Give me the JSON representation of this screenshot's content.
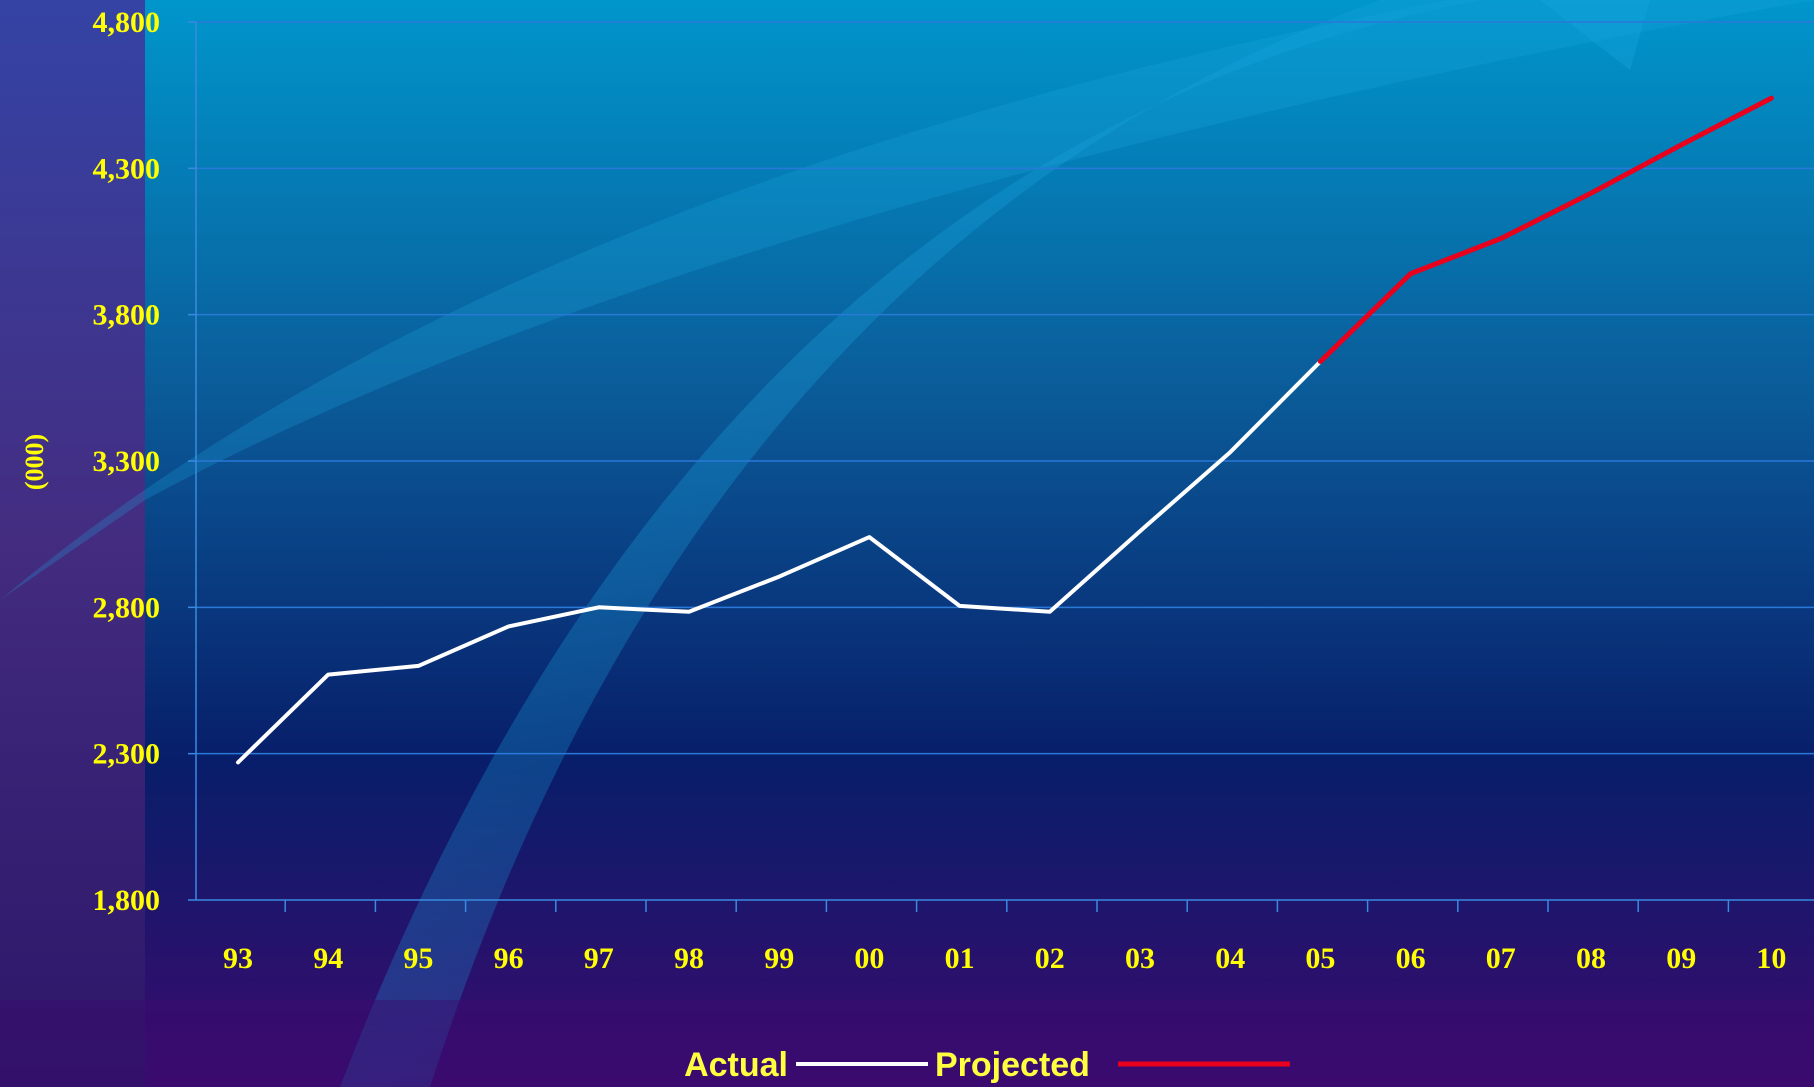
{
  "chart_data": {
    "type": "line",
    "ylabel": "(000)",
    "xlabel": "",
    "title": "",
    "categories": [
      "93",
      "94",
      "95",
      "96",
      "97",
      "98",
      "99",
      "00",
      "01",
      "02",
      "03",
      "04",
      "05",
      "06",
      "07",
      "08",
      "09",
      "10"
    ],
    "ylim": [
      1800,
      4800
    ],
    "yticks": [
      1800,
      2300,
      2800,
      3300,
      3800,
      4300,
      4800
    ],
    "ytick_labels": [
      "1,800",
      "2,300",
      "2,800",
      "3,300",
      "3,800",
      "4,300",
      "4,800"
    ],
    "grid": true,
    "legend": "bottom-center",
    "series": [
      {
        "name": "Actual",
        "color": "#ffffff",
        "values": [
          2270,
          2570,
          2600,
          2735,
          2800,
          2785,
          2905,
          3040,
          2805,
          2785,
          3060,
          3330,
          3640,
          null,
          null,
          null,
          null,
          null
        ]
      },
      {
        "name": "Projected",
        "color": "#e8001c",
        "values": [
          null,
          null,
          null,
          null,
          null,
          null,
          null,
          null,
          null,
          null,
          null,
          null,
          3640,
          3940,
          4060,
          4215,
          4380,
          4540
        ]
      }
    ]
  }
}
